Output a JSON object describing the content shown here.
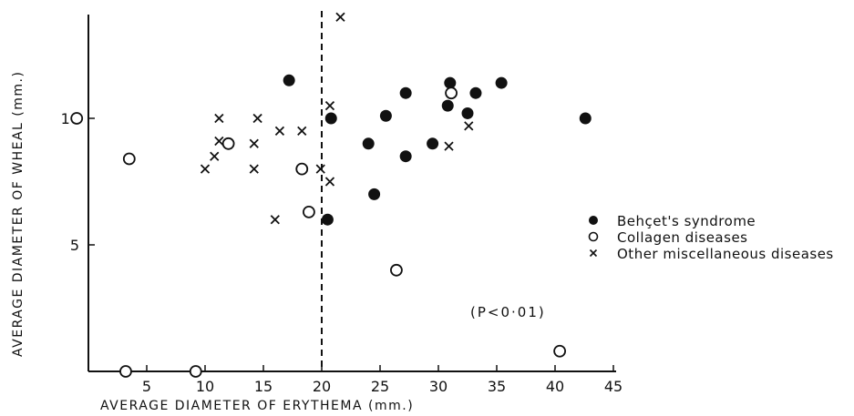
{
  "chart_data": {
    "type": "scatter",
    "xlabel": "AVERAGE DIAMETER OF ERYTHEMA (mm.)",
    "ylabel": "AVERAGE DIAMETER OF WHEAL (mm.)",
    "xlim": [
      0,
      45
    ],
    "ylim": [
      0,
      14
    ],
    "x_ticks": [
      5,
      10,
      15,
      20,
      25,
      30,
      35,
      40,
      45
    ],
    "y_ticks": [
      5,
      10
    ],
    "grid": false,
    "legend_position": "right",
    "reference_line": {
      "x": 20,
      "style": "dashed"
    },
    "annotation": "(P<0·01)",
    "series": [
      {
        "name": "Behçet's syndrome",
        "marker": "filled-circle",
        "points": [
          [
            17.2,
            11.5
          ],
          [
            20.5,
            6.0
          ],
          [
            20.8,
            10.0
          ],
          [
            24.0,
            9.0
          ],
          [
            24.5,
            7.0
          ],
          [
            25.5,
            10.1
          ],
          [
            27.2,
            8.5
          ],
          [
            27.2,
            11.0
          ],
          [
            29.5,
            9.0
          ],
          [
            30.8,
            10.5
          ],
          [
            31.0,
            11.4
          ],
          [
            32.5,
            10.2
          ],
          [
            33.2,
            11.0
          ],
          [
            35.4,
            11.4
          ],
          [
            42.6,
            10.0
          ]
        ]
      },
      {
        "name": "Collagen diseases",
        "marker": "open-circle",
        "points": [
          [
            -1.0,
            10.0
          ],
          [
            3.5,
            8.4
          ],
          [
            3.2,
            0.0
          ],
          [
            9.2,
            0.0
          ],
          [
            12.0,
            9.0
          ],
          [
            18.3,
            8.0
          ],
          [
            18.9,
            6.3
          ],
          [
            26.4,
            4.0
          ],
          [
            31.1,
            11.0
          ],
          [
            40.4,
            0.8
          ]
        ]
      },
      {
        "name": "Other miscellaneous diseases",
        "marker": "x",
        "points": [
          [
            21.6,
            14.0
          ],
          [
            20.7,
            10.5
          ],
          [
            11.2,
            10.0
          ],
          [
            14.5,
            10.0
          ],
          [
            16.4,
            9.5
          ],
          [
            18.3,
            9.5
          ],
          [
            11.2,
            9.1
          ],
          [
            14.2,
            9.0
          ],
          [
            10.8,
            8.5
          ],
          [
            10.0,
            8.0
          ],
          [
            14.2,
            8.0
          ],
          [
            19.9,
            8.0
          ],
          [
            20.7,
            7.5
          ],
          [
            16.0,
            6.0
          ],
          [
            30.9,
            8.9
          ],
          [
            32.6,
            9.7
          ]
        ]
      }
    ]
  }
}
